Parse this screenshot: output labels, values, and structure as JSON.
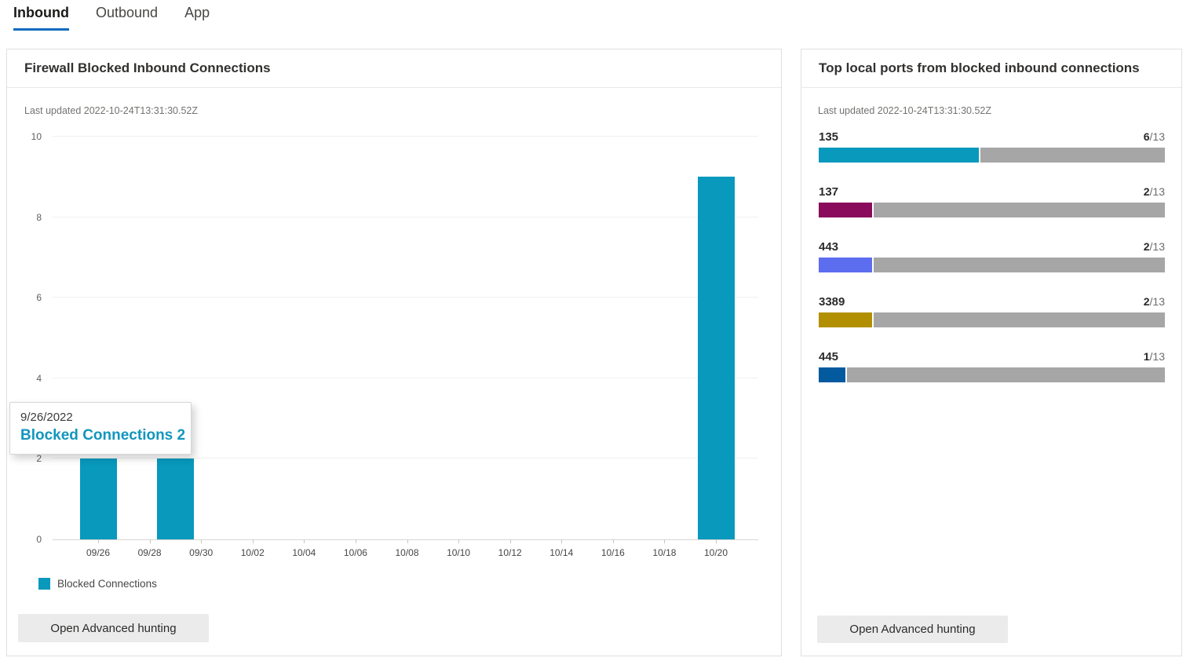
{
  "tabs": [
    {
      "label": "Inbound",
      "active": true
    },
    {
      "label": "Outbound",
      "active": false
    },
    {
      "label": "App",
      "active": false
    }
  ],
  "colors": {
    "tab_underline": "#0f6cbd",
    "remainder_gray": "#a6a6a6",
    "tooltip_value": "#1296bd"
  },
  "left_card": {
    "title": "Firewall Blocked Inbound Connections",
    "last_updated": "Last updated 2022-10-24T13:31:30.52Z",
    "button_label": "Open Advanced hunting",
    "tooltip": {
      "date": "9/26/2022",
      "label": "Blocked Connections 2"
    }
  },
  "chart_data": {
    "type": "bar",
    "title": "Firewall Blocked Inbound Connections",
    "series_name": "Blocked Connections",
    "bar_color": "#0899bc",
    "ylim": [
      0,
      10
    ],
    "y_ticks": [
      0,
      2,
      4,
      6,
      8,
      10
    ],
    "grid": true,
    "legend_position": "bottom",
    "x_tick_labels": [
      "09/26",
      "09/28",
      "09/30",
      "10/02",
      "10/04",
      "10/06",
      "10/08",
      "10/10",
      "10/12",
      "10/14",
      "10/16",
      "10/18",
      "10/20"
    ],
    "points": [
      {
        "date": "09/26",
        "tick_index": 0,
        "value": 2
      },
      {
        "date": "09/29",
        "tick_index": 1.5,
        "value": 2
      },
      {
        "date": "10/20",
        "tick_index": 12,
        "value": 9
      }
    ]
  },
  "right_card": {
    "title": "Top local ports from blocked inbound connections",
    "last_updated": "Last updated 2022-10-24T13:31:30.52Z",
    "button_label": "Open Advanced hunting",
    "total": 13,
    "ports": [
      {
        "port": "135",
        "count": 6,
        "color": "#0899bc"
      },
      {
        "port": "137",
        "count": 2,
        "color": "#8a0a5c"
      },
      {
        "port": "443",
        "count": 2,
        "color": "#5c6df0"
      },
      {
        "port": "3389",
        "count": 2,
        "color": "#b18f00"
      },
      {
        "port": "445",
        "count": 1,
        "color": "#035a9e"
      }
    ]
  }
}
